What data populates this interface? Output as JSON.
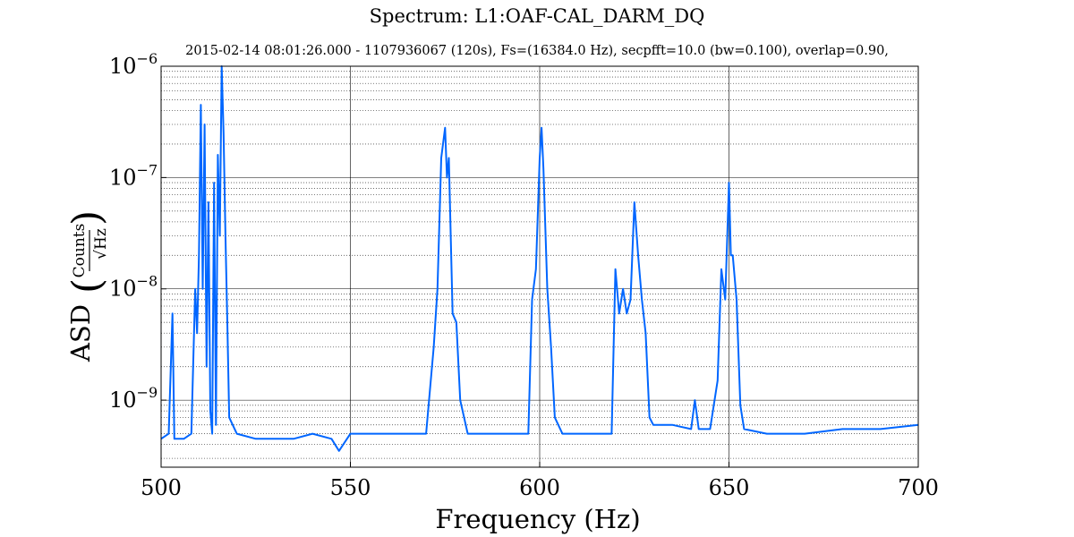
{
  "title": "Spectrum: L1:OAF-CAL_DARM_DQ",
  "subtitle": "2015-02-14 08:01:26.000 - 1107936067 (120s), Fs=(16384.0 Hz), secpfft=10.0 (bw=0.100), overlap=0.90,",
  "chart_data": {
    "type": "line",
    "xlabel": "Frequency (Hz)",
    "ylabel_prefix": "ASD",
    "ylabel_fraction_numerator": "Counts",
    "ylabel_fraction_denominator": "Hz",
    "xlim": [
      500,
      700
    ],
    "ylim": [
      2.5e-10,
      1e-06
    ],
    "y_scale": "log",
    "grid": true,
    "x_ticks": [
      500,
      550,
      600,
      650,
      700
    ],
    "x_tick_labels": [
      "500",
      "550",
      "600",
      "650",
      "700"
    ],
    "y_ticks": [
      1e-09,
      1e-08,
      1e-07,
      1e-06
    ],
    "y_tick_base": "10",
    "y_tick_exponents": [
      "−9",
      "−8",
      "−7",
      "−6"
    ],
    "line_color": "#0066ff",
    "series": [
      {
        "x": [
          500,
          502,
          503,
          503.5,
          504,
          506,
          508,
          509,
          509.5,
          510,
          510.5,
          511,
          511.5,
          512,
          512.5,
          513,
          513.5,
          514,
          514.5,
          515,
          515.5,
          516,
          516.5,
          517,
          517.5,
          518,
          520,
          525,
          530,
          535,
          540,
          545,
          547,
          550,
          555,
          560,
          565,
          570,
          572,
          573,
          574,
          575,
          575.5,
          576,
          577,
          578,
          579,
          581,
          585,
          590,
          595,
          597,
          598,
          599,
          600,
          600.5,
          601,
          602,
          603,
          604,
          606,
          610,
          615,
          619,
          620,
          621,
          622,
          623,
          624,
          625,
          626,
          627,
          628,
          629,
          630,
          635,
          640,
          641,
          642,
          645,
          647,
          648,
          649,
          650,
          650.5,
          651,
          652,
          653,
          654,
          660,
          670,
          680,
          690,
          700
        ],
        "y": [
          4.5e-10,
          5e-10,
          6e-09,
          4.5e-10,
          4.5e-10,
          4.5e-10,
          5e-10,
          1e-08,
          4e-09,
          2e-08,
          4.5e-07,
          1e-08,
          3e-07,
          2e-09,
          6e-08,
          8e-10,
          5e-10,
          9e-08,
          6e-10,
          1.6e-07,
          3e-08,
          1e-06,
          2.5e-07,
          3e-08,
          5e-09,
          7e-10,
          5e-10,
          4.5e-10,
          4.5e-10,
          4.5e-10,
          5e-10,
          4.5e-10,
          3.5e-10,
          5e-10,
          5e-10,
          5e-10,
          5e-10,
          5e-10,
          3e-09,
          1e-08,
          1.5e-07,
          2.8e-07,
          1e-07,
          1.5e-07,
          6e-09,
          5e-09,
          1e-09,
          5e-10,
          5e-10,
          5e-10,
          5e-10,
          5e-10,
          8e-09,
          1.5e-08,
          1.5e-07,
          2.8e-07,
          1.2e-07,
          1e-08,
          3e-09,
          7e-10,
          5e-10,
          5e-10,
          5e-10,
          5e-10,
          1.5e-08,
          6e-09,
          1e-08,
          6e-09,
          8e-09,
          6e-08,
          2e-08,
          8e-09,
          4e-09,
          7e-10,
          6e-10,
          6e-10,
          5.5e-10,
          1e-09,
          5.5e-10,
          5.5e-10,
          1.5e-09,
          1.5e-08,
          8e-09,
          9e-08,
          2e-08,
          2e-08,
          8e-09,
          9e-10,
          5.5e-10,
          5e-10,
          5e-10,
          5.5e-10,
          5.5e-10,
          6e-10
        ]
      }
    ]
  }
}
